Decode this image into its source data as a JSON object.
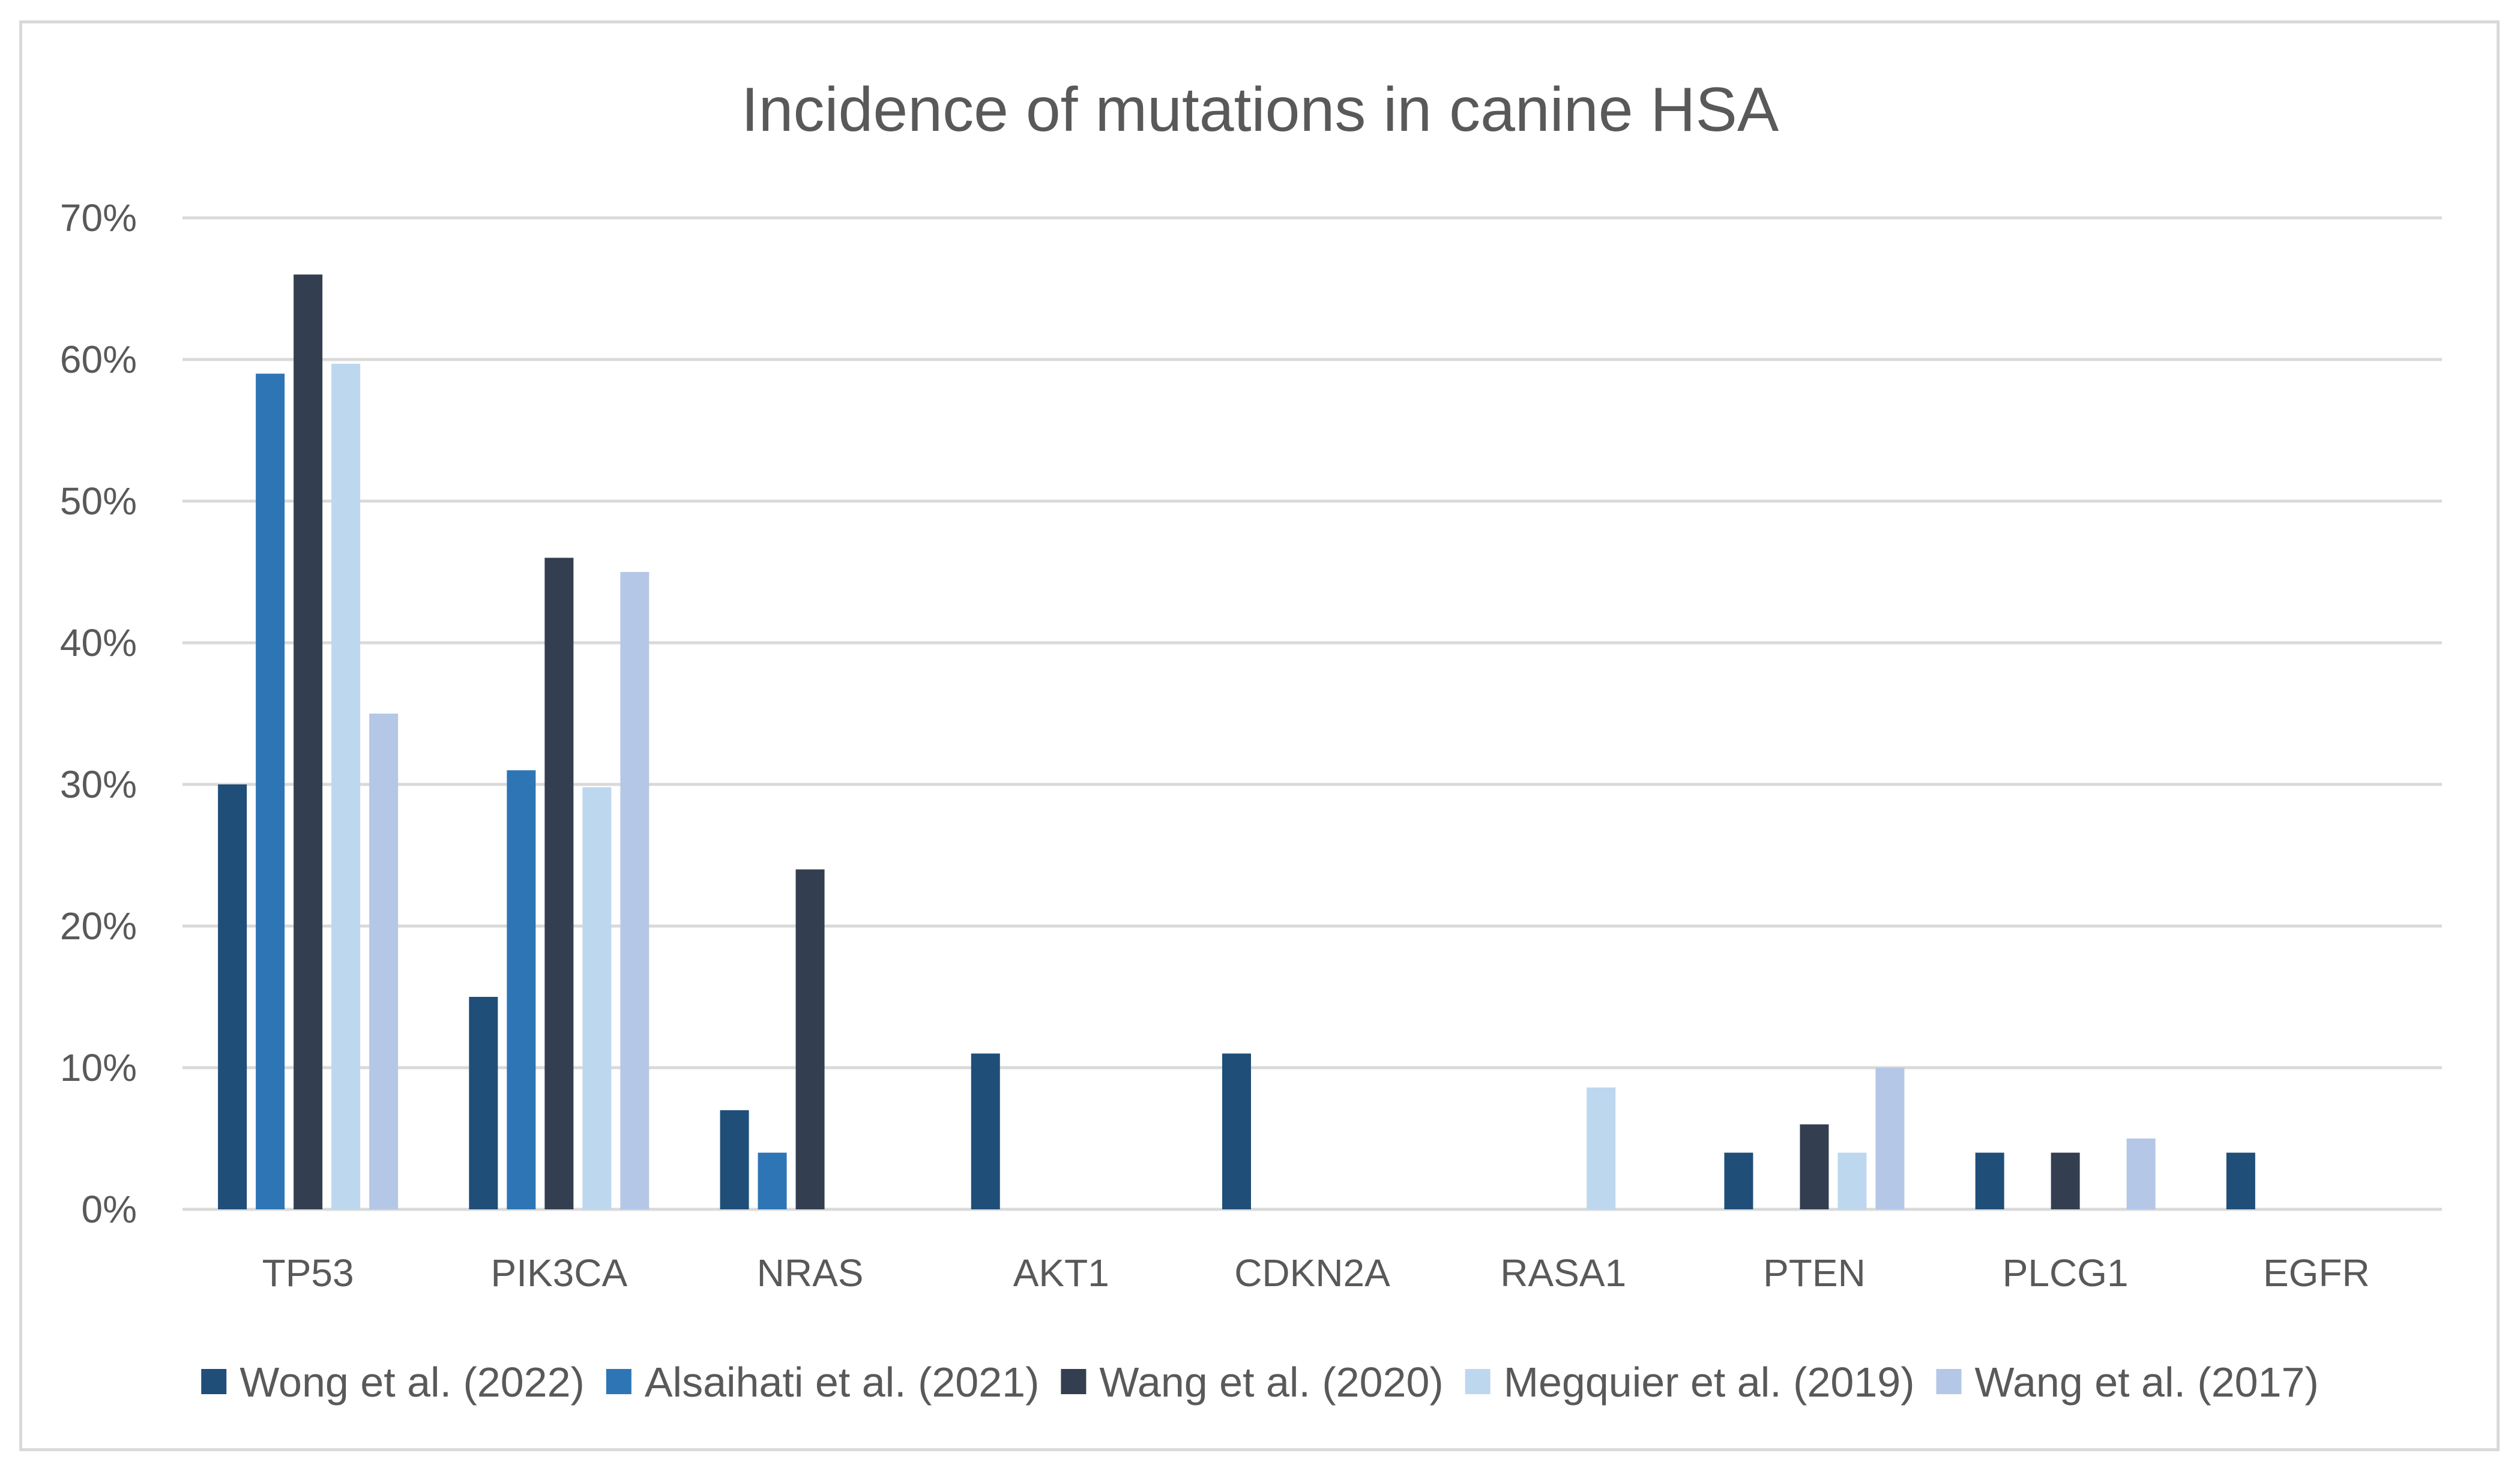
{
  "chart_data": {
    "type": "bar",
    "title": "Incidence of mutations in canine HSA",
    "xlabel": "",
    "ylabel": "",
    "categories": [
      "TP53",
      "PIK3CA",
      "NRAS",
      "AKT1",
      "CDKN2A",
      "RASA1",
      "PTEN",
      "PLCG1",
      "EGFR"
    ],
    "y_ticks": [
      "0%",
      "10%",
      "20%",
      "30%",
      "40%",
      "50%",
      "60%",
      "70%"
    ],
    "ylim": [
      0,
      70
    ],
    "grid": true,
    "legend_position": "bottom",
    "series": [
      {
        "name": "Wong et al. (2022)",
        "color": "#1f4e79",
        "values": [
          30,
          15,
          7,
          11,
          11,
          null,
          4,
          4,
          4
        ]
      },
      {
        "name": "Alsaihati et al. (2021)",
        "color": "#2e75b6",
        "values": [
          59,
          31,
          4,
          null,
          null,
          null,
          null,
          null,
          null
        ]
      },
      {
        "name": "Wang et al. (2020)",
        "color": "#333f50",
        "values": [
          66,
          46,
          24,
          null,
          null,
          null,
          6,
          4,
          null
        ]
      },
      {
        "name": "Megquier et al. (2019)",
        "color": "#bdd7ee",
        "values": [
          59.7,
          29.8,
          null,
          null,
          null,
          8.6,
          4,
          null,
          null
        ]
      },
      {
        "name": "Wang et al. (2017)",
        "color": "#b4c7e7",
        "values": [
          35,
          45,
          null,
          null,
          null,
          null,
          10,
          5,
          null
        ]
      }
    ]
  }
}
